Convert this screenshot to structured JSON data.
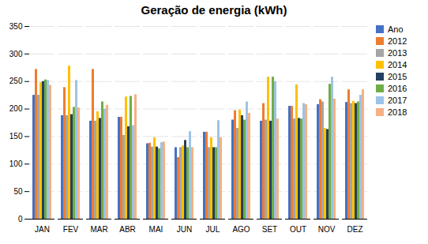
{
  "chart_data": {
    "type": "bar",
    "title": "Geração de energia (kWh)",
    "categories": [
      "JAN",
      "FEV",
      "MAR",
      "ABR",
      "MAI",
      "JUN",
      "JUL",
      "AGO",
      "SET",
      "OUT",
      "NOV",
      "DEZ"
    ],
    "series": [
      {
        "name": "Ano",
        "color": "#4472C4",
        "values": [
          225,
          188,
          178,
          185,
          137,
          130,
          158,
          180,
          178,
          205,
          208,
          212
        ]
      },
      {
        "name": "2012",
        "color": "#ED7D31",
        "values": [
          272,
          239,
          272,
          185,
          138,
          112,
          158,
          197,
          210,
          205,
          217,
          235
        ]
      },
      {
        "name": "2013",
        "color": "#A5A5A5",
        "values": [
          225,
          188,
          178,
          152,
          131,
          130,
          130,
          165,
          180,
          182,
          213,
          210
        ]
      },
      {
        "name": "2014",
        "color": "#FFC000",
        "values": [
          248,
          278,
          195,
          222,
          148,
          133,
          148,
          198,
          258,
          244,
          165,
          214
        ]
      },
      {
        "name": "2015",
        "color": "#243F60",
        "values": [
          250,
          190,
          183,
          168,
          131,
          143,
          130,
          188,
          178,
          183,
          163,
          210
        ]
      },
      {
        "name": "2016",
        "color": "#70AD47",
        "values": [
          253,
          203,
          213,
          223,
          128,
          130,
          130,
          180,
          258,
          182,
          245,
          213
        ]
      },
      {
        "name": "2017",
        "color": "#9DC3E6",
        "values": [
          252,
          252,
          200,
          170,
          139,
          159,
          179,
          213,
          250,
          210,
          258,
          225
        ]
      },
      {
        "name": "2018",
        "color": "#F4B183",
        "values": [
          243,
          202,
          207,
          226,
          140,
          130,
          148,
          192,
          182,
          208,
          218,
          235
        ]
      }
    ],
    "ylim": [
      0,
      350
    ],
    "yticks": [
      0,
      50,
      100,
      150,
      200,
      250,
      300,
      350
    ],
    "grid": true,
    "legend": "right"
  }
}
